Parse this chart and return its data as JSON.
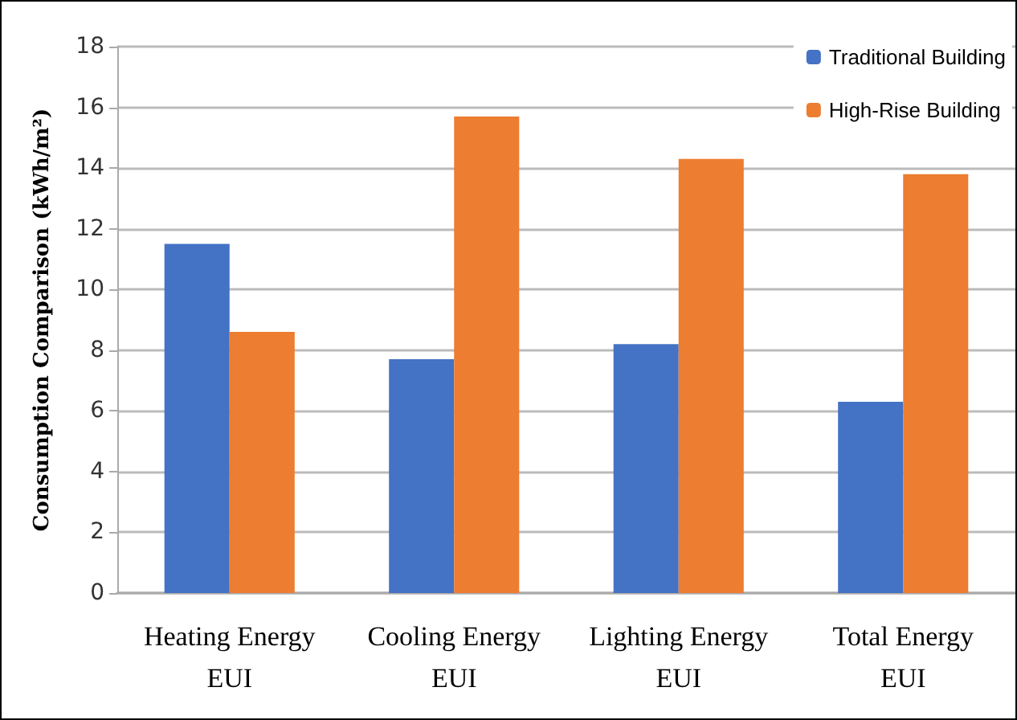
{
  "chart_data": {
    "type": "bar",
    "ylabel": "Consumption Comparison (kWh/m²)",
    "categories": [
      "Heating Energy\nEUI",
      "Cooling Energy\nEUI",
      "Lighting Energy\nEUI",
      "Total Energy\nEUI"
    ],
    "series": [
      {
        "name": "Traditional Building",
        "color": "#4472c4",
        "values": [
          11.5,
          7.7,
          8.2,
          6.3
        ]
      },
      {
        "name": "High-Rise Building",
        "color": "#ed7d31",
        "values": [
          8.6,
          15.7,
          14.3,
          13.8
        ]
      }
    ],
    "ylim": [
      0,
      18
    ],
    "yticks": [
      0,
      2,
      4,
      6,
      8,
      10,
      12,
      14,
      16,
      18
    ],
    "grid": "y",
    "legend": "top right"
  }
}
